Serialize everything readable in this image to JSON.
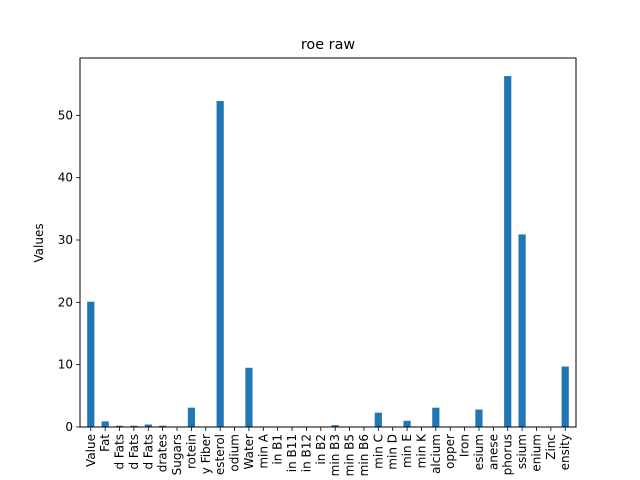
{
  "chart_data": {
    "type": "bar",
    "title": "roe raw",
    "xlabel": "",
    "ylabel": "Values",
    "ylim": [
      0,
      59.2
    ],
    "yticks": [
      0,
      10,
      20,
      30,
      40,
      50
    ],
    "grid": false,
    "bar_color": "#1f77b4",
    "categories": [
      "Value",
      "Fat",
      "d Fats",
      "d Fats",
      "d Fats",
      "drates",
      "Sugars",
      "rotein",
      "y Fiber",
      "esterol",
      "odium",
      "Water",
      "min A",
      "in B1",
      "in B11",
      "in B12",
      "in B2",
      "min B3",
      "min B5",
      "min B6",
      "min C",
      "min D",
      "min E",
      "min K",
      "alcium",
      "opper",
      "Iron",
      "esium",
      "anese",
      "phorus",
      "ssium",
      "enium",
      "Zinc",
      "ensity"
    ],
    "values": [
      20.1,
      0.9,
      0.2,
      0.2,
      0.4,
      0.2,
      0.0,
      3.1,
      0.0,
      52.3,
      0.0,
      9.5,
      0.0,
      0.0,
      0.0,
      0.0,
      0.0,
      0.3,
      0.0,
      0.0,
      2.3,
      0.0,
      1.0,
      0.0,
      3.1,
      0.0,
      0.0,
      2.8,
      0.0,
      56.3,
      30.9,
      0.0,
      0.0,
      9.7
    ]
  }
}
